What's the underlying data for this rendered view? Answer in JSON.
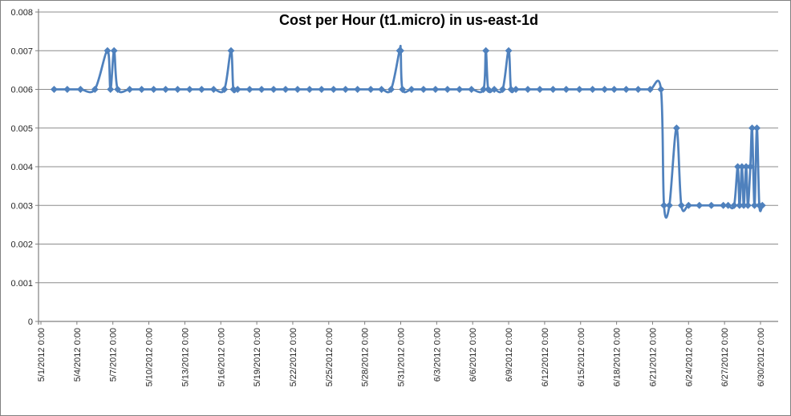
{
  "chart": {
    "series_color": "#4F81BD",
    "gridline_color": "#8C8C8C",
    "axis_color": "#808080",
    "tick_label_color": "#262626",
    "frame_border_color": "#808080",
    "background_color": "#FFFFFF"
  },
  "chart_data": {
    "type": "line",
    "title": "Cost per Hour (t1.micro) in us-east-1d",
    "xlabel": "",
    "ylabel": "",
    "x_unit": "days since 5/1/2012 0:00",
    "ylim": [
      0,
      0.008
    ],
    "grid": true,
    "legend": false,
    "marker": "diamond",
    "y_ticks": [
      {
        "value": 0.008,
        "label": "0.008"
      },
      {
        "value": 0.007,
        "label": "0.007"
      },
      {
        "value": 0.006,
        "label": "0.006"
      },
      {
        "value": 0.005,
        "label": "0.005"
      },
      {
        "value": 0.004,
        "label": "0.004"
      },
      {
        "value": 0.003,
        "label": "0.003"
      },
      {
        "value": 0.002,
        "label": "0.002"
      },
      {
        "value": 0.001,
        "label": "0.001"
      },
      {
        "value": 0,
        "label": "0"
      }
    ],
    "x_ticks": [
      {
        "day": 0,
        "label": "5/1/2012 0:00"
      },
      {
        "day": 3,
        "label": "5/4/2012 0:00"
      },
      {
        "day": 6,
        "label": "5/7/2012 0:00"
      },
      {
        "day": 9,
        "label": "5/10/2012 0:00"
      },
      {
        "day": 12,
        "label": "5/13/2012 0:00"
      },
      {
        "day": 15,
        "label": "5/16/2012 0:00"
      },
      {
        "day": 18,
        "label": "5/19/2012 0:00"
      },
      {
        "day": 21,
        "label": "5/22/2012 0:00"
      },
      {
        "day": 24,
        "label": "5/25/2012 0:00"
      },
      {
        "day": 27,
        "label": "5/28/2012 0:00"
      },
      {
        "day": 30,
        "label": "5/31/2012 0:00"
      },
      {
        "day": 33,
        "label": "6/3/2012 0:00"
      },
      {
        "day": 36,
        "label": "6/6/2012 0:00"
      },
      {
        "day": 39,
        "label": "6/9/2012 0:00"
      },
      {
        "day": 42,
        "label": "6/12/2012 0:00"
      },
      {
        "day": 45,
        "label": "6/15/2012 0:00"
      },
      {
        "day": 48,
        "label": "6/18/2012 0:00"
      },
      {
        "day": 51,
        "label": "6/21/2012 0:00"
      },
      {
        "day": 54,
        "label": "6/24/2012 0:00"
      },
      {
        "day": 57,
        "label": "6/27/2012 0:00"
      },
      {
        "day": 60,
        "label": "6/30/2012 0:00"
      }
    ],
    "series": [
      {
        "points": [
          [
            1.1,
            0.006
          ],
          [
            2.2,
            0.006
          ],
          [
            3.3,
            0.006
          ],
          [
            4.5,
            0.006
          ],
          [
            5.55,
            0.007
          ],
          [
            5.8,
            0.006
          ],
          [
            6.1,
            0.007
          ],
          [
            6.4,
            0.006
          ],
          [
            7.4,
            0.006
          ],
          [
            8.4,
            0.006
          ],
          [
            9.4,
            0.006
          ],
          [
            10.4,
            0.006
          ],
          [
            11.4,
            0.006
          ],
          [
            12.4,
            0.006
          ],
          [
            13.4,
            0.006
          ],
          [
            14.4,
            0.006
          ],
          [
            15.3,
            0.006
          ],
          [
            15.85,
            0.007
          ],
          [
            16.05,
            0.006
          ],
          [
            16.4,
            0.006
          ],
          [
            17.4,
            0.006
          ],
          [
            18.4,
            0.006
          ],
          [
            19.4,
            0.006
          ],
          [
            20.4,
            0.006
          ],
          [
            21.4,
            0.006
          ],
          [
            22.4,
            0.006
          ],
          [
            23.4,
            0.006
          ],
          [
            24.4,
            0.006
          ],
          [
            25.4,
            0.006
          ],
          [
            26.4,
            0.006
          ],
          [
            27.5,
            0.006
          ],
          [
            28.4,
            0.006
          ],
          [
            29.2,
            0.006
          ],
          [
            29.9,
            0.007
          ],
          [
            30.0,
            0.007
          ],
          [
            30.15,
            0.006
          ],
          [
            30.9,
            0.006
          ],
          [
            31.9,
            0.006
          ],
          [
            32.9,
            0.006
          ],
          [
            33.9,
            0.006
          ],
          [
            34.9,
            0.006
          ],
          [
            35.9,
            0.006
          ],
          [
            36.9,
            0.006
          ],
          [
            37.1,
            0.007
          ],
          [
            37.3,
            0.006
          ],
          [
            37.8,
            0.006
          ],
          [
            38.5,
            0.006
          ],
          [
            39.0,
            0.007
          ],
          [
            39.2,
            0.006
          ],
          [
            39.6,
            0.006
          ],
          [
            40.6,
            0.006
          ],
          [
            41.6,
            0.006
          ],
          [
            42.7,
            0.006
          ],
          [
            43.8,
            0.006
          ],
          [
            44.9,
            0.006
          ],
          [
            46.0,
            0.006
          ],
          [
            47.0,
            0.006
          ],
          [
            47.8,
            0.006
          ],
          [
            48.8,
            0.006
          ],
          [
            49.8,
            0.006
          ],
          [
            50.8,
            0.006
          ],
          [
            51.7,
            0.006
          ],
          [
            51.95,
            0.003
          ],
          [
            52.4,
            0.003
          ],
          [
            53.0,
            0.005
          ],
          [
            53.4,
            0.003
          ],
          [
            54.0,
            0.003
          ],
          [
            54.9,
            0.003
          ],
          [
            55.9,
            0.003
          ],
          [
            56.9,
            0.003
          ],
          [
            57.3,
            0.003
          ],
          [
            57.8,
            0.003
          ],
          [
            58.1,
            0.004
          ],
          [
            58.25,
            0.003
          ],
          [
            58.45,
            0.004
          ],
          [
            58.6,
            0.003
          ],
          [
            58.8,
            0.004
          ],
          [
            58.95,
            0.003
          ],
          [
            59.15,
            0.004
          ],
          [
            59.3,
            0.005
          ],
          [
            59.5,
            0.003
          ],
          [
            59.7,
            0.005
          ],
          [
            59.9,
            0.003
          ],
          [
            60.15,
            0.003
          ]
        ]
      }
    ]
  }
}
